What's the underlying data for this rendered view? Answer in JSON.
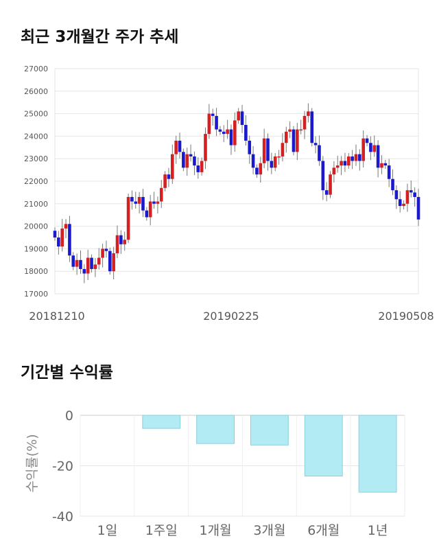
{
  "chart_data": [
    {
      "type": "candlestick",
      "title": "최근 3개월간 주가 추세",
      "ylim": [
        17000,
        27000
      ],
      "yticks": [
        "17000",
        "18000",
        "19000",
        "20000",
        "21000",
        "22000",
        "23000",
        "24000",
        "25000",
        "26000",
        "27000"
      ],
      "xtick_labels": [
        "20181210",
        "20190225",
        "20190508"
      ],
      "colors": {
        "up": "#d42020",
        "down": "#1a1acc",
        "wick": "#777777"
      },
      "grid": true,
      "closes": [
        19500,
        19100,
        19900,
        20100,
        18700,
        18200,
        18500,
        18100,
        17900,
        18600,
        18100,
        18300,
        18600,
        19000,
        18900,
        18000,
        18800,
        19600,
        19200,
        19400,
        21300,
        21100,
        21000,
        21300,
        20700,
        20400,
        21100,
        21000,
        21100,
        21700,
        22300,
        22100,
        23200,
        23800,
        23300,
        22600,
        23200,
        23100,
        22700,
        22400,
        22900,
        24100,
        25000,
        24900,
        24300,
        24200,
        24100,
        24300,
        23600,
        24700,
        25100,
        24500,
        23800,
        23200,
        22600,
        22300,
        22800,
        23900,
        22900,
        22600,
        23100,
        23100,
        23700,
        24200,
        24300,
        23300,
        24300,
        24300,
        24900,
        25100,
        23700,
        23600,
        22900,
        21600,
        21400,
        22300,
        22600,
        22700,
        22900,
        22700,
        23100,
        22900,
        23200,
        22900,
        23900,
        23700,
        23300,
        23600,
        22600,
        22800,
        22700,
        22100,
        21600,
        21200,
        20900,
        21000,
        21600,
        21500,
        21300,
        20300
      ]
    },
    {
      "type": "bar",
      "title": "기간별 수익률",
      "categories": [
        "1일",
        "1주일",
        "1개월",
        "3개월",
        "6개월",
        "1년"
      ],
      "values": [
        0,
        -5.2,
        -11.2,
        -11.8,
        -24.1,
        -30.5
      ],
      "ylabel": "수익률(%)",
      "ylim": [
        -40,
        0
      ],
      "yticks": [
        "0",
        "-20",
        "-40"
      ],
      "colors": {
        "fill": "#b2ebf4",
        "stroke": "#8bcfdc"
      },
      "grid": true
    }
  ]
}
